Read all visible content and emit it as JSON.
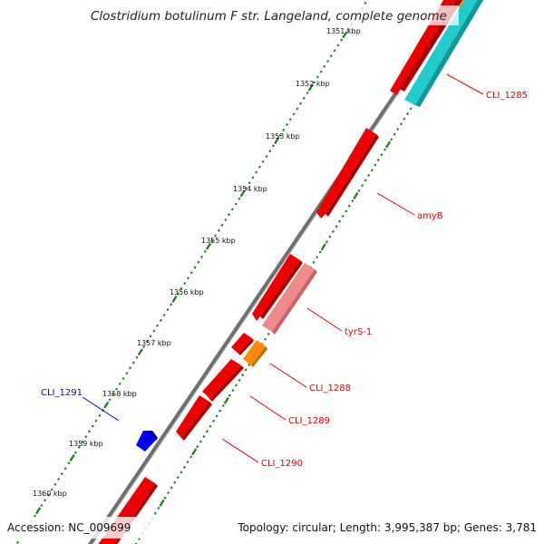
{
  "title": "Clostridium botulinum F str. Langeland, complete genome",
  "footer": {
    "accession": "Accession: NC_009699",
    "summary": "Topology: circular; Length: 3,995,387 bp; Genes: 3,781"
  },
  "ticks": [
    "1351 kbp",
    "1352 kbp",
    "1353 kbp",
    "1354 kbp",
    "1355 kbp",
    "1356 kbp",
    "1357 kbp",
    "1358 kbp",
    "1359 kbp",
    "1360 kbp"
  ],
  "gene_labels": [
    {
      "text": "CLI_1285",
      "color": "#dd0000"
    },
    {
      "text": "amyB",
      "color": "#dd0000"
    },
    {
      "text": "tyrS-1",
      "color": "#dd0000"
    },
    {
      "text": "CLI_1288",
      "color": "#dd0000"
    },
    {
      "text": "CLI_1289",
      "color": "#dd0000"
    },
    {
      "text": "CLI_1290",
      "color": "#dd0000"
    },
    {
      "text": "CLI_1291",
      "color": "#0000cc"
    }
  ],
  "colors": {
    "backbone": "#7f7f7f",
    "tick_marks": "#1a7a1a",
    "gene_red": "#ee0000",
    "gene_pink": "#f08a8a",
    "gene_orange": "#ff8c00",
    "gene_cyan": "#22cccc",
    "gene_blue": "#0000ee"
  }
}
